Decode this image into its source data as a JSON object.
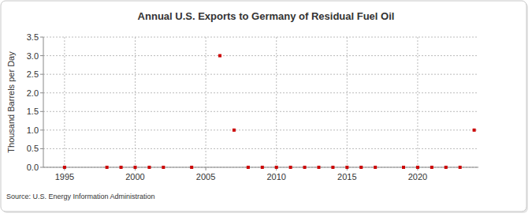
{
  "chart_data": {
    "type": "scatter",
    "title": "Annual U.S. Exports to Germany of Residual Fuel Oil",
    "y_label": "Thousand Barrels per Day",
    "source": "Source: U.S. Energy Information Administration",
    "x": [
      1995,
      1998,
      1999,
      2000,
      2001,
      2002,
      2004,
      2006,
      2007,
      2008,
      2009,
      2010,
      2011,
      2012,
      2013,
      2014,
      2015,
      2016,
      2017,
      2019,
      2020,
      2021,
      2022,
      2023,
      2024
    ],
    "values": [
      0,
      0,
      0,
      0,
      0,
      0,
      0,
      3,
      1,
      0,
      0,
      0,
      0,
      0,
      0,
      0,
      0,
      0,
      0,
      0,
      0,
      0,
      0,
      0,
      1
    ],
    "color": "#cc0000",
    "marker": "square",
    "xlim": [
      1993.5,
      2024.3
    ],
    "xticks": [
      1995,
      2000,
      2005,
      2010,
      2015,
      2020
    ],
    "ylim": [
      0,
      3.5
    ],
    "yticks": [
      {
        "value": 0,
        "label": "0.0"
      },
      {
        "value": 0.5,
        "label": "0.5"
      },
      {
        "value": 1,
        "label": "1.0"
      },
      {
        "value": 1.5,
        "label": "1.5"
      },
      {
        "value": 2,
        "label": "2.0"
      },
      {
        "value": 2.5,
        "label": "2.5"
      },
      {
        "value": 3,
        "label": "3.0"
      },
      {
        "value": 3.5,
        "label": "3.5"
      }
    ],
    "grid": true
  }
}
